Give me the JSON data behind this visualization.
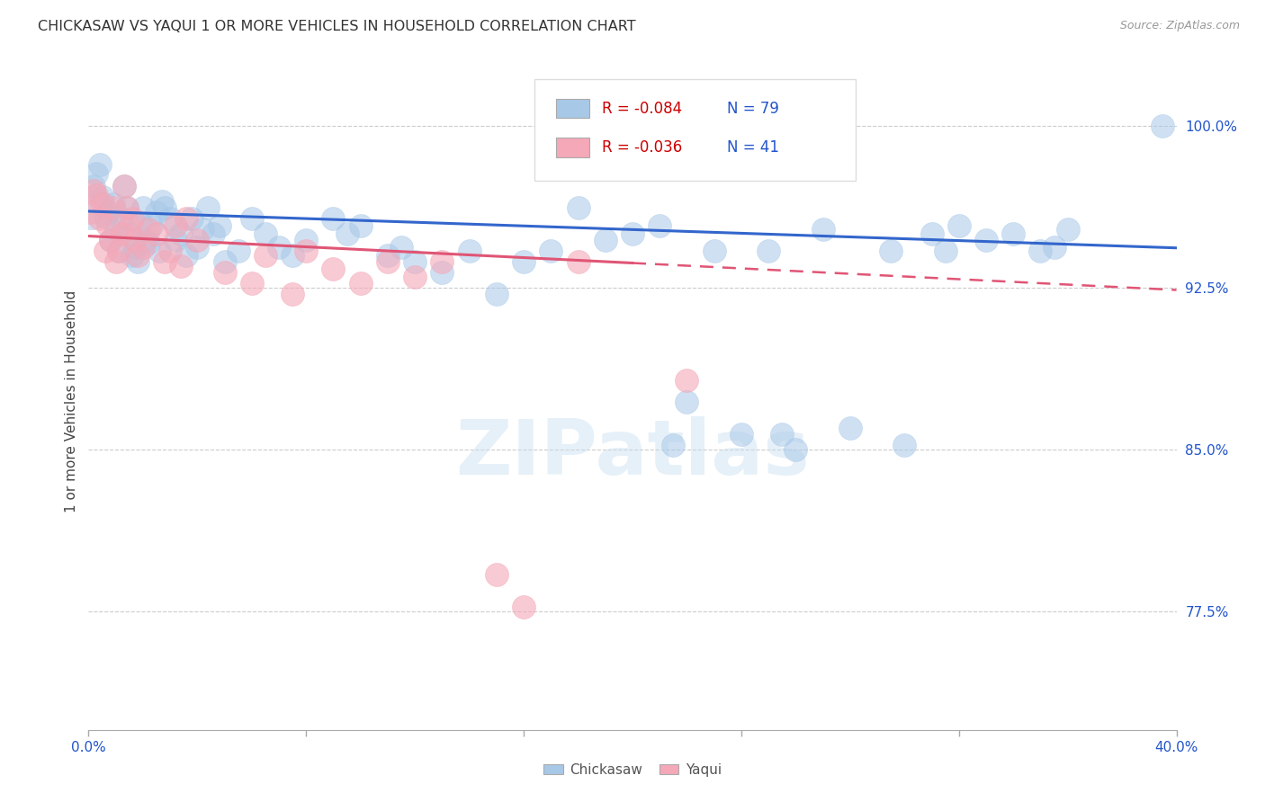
{
  "title": "CHICKASAW VS YAQUI 1 OR MORE VEHICLES IN HOUSEHOLD CORRELATION CHART",
  "source": "Source: ZipAtlas.com",
  "ylabel": "1 or more Vehicles in Household",
  "xmin": 0.0,
  "xmax": 0.4,
  "ymin": 0.72,
  "ymax": 1.025,
  "yticks": [
    0.775,
    0.85,
    0.925,
    1.0
  ],
  "ytick_labels": [
    "77.5%",
    "85.0%",
    "92.5%",
    "100.0%"
  ],
  "xticks": [
    0.0,
    0.08,
    0.16,
    0.24,
    0.32,
    0.4
  ],
  "xtick_labels": [
    "0.0%",
    "",
    "",
    "",
    "",
    "40.0%"
  ],
  "legend_blue_r": "R = -0.084",
  "legend_blue_n": "N = 79",
  "legend_pink_r": "R = -0.036",
  "legend_pink_n": "N = 41",
  "legend_labels": [
    "Chickasaw",
    "Yaqui"
  ],
  "blue_color": "#a8c8e8",
  "pink_color": "#f4a8b8",
  "blue_line_color": "#3366cc",
  "pink_line_color": "#e05575",
  "watermark": "ZIPatlas",
  "dot_size": 350,
  "big_dot_size": 1200,
  "chickasaw_x": [
    0.001,
    0.002,
    0.003,
    0.004,
    0.005,
    0.006,
    0.007,
    0.008,
    0.009,
    0.01,
    0.011,
    0.012,
    0.013,
    0.014,
    0.015,
    0.016,
    0.017,
    0.018,
    0.019,
    0.02,
    0.021,
    0.022,
    0.023,
    0.025,
    0.026,
    0.027,
    0.028,
    0.03,
    0.032,
    0.034,
    0.036,
    0.038,
    0.04,
    0.042,
    0.044,
    0.046,
    0.048,
    0.05,
    0.055,
    0.06,
    0.065,
    0.07,
    0.075,
    0.08,
    0.09,
    0.095,
    0.1,
    0.11,
    0.115,
    0.12,
    0.13,
    0.14,
    0.15,
    0.16,
    0.17,
    0.18,
    0.19,
    0.2,
    0.21,
    0.215,
    0.22,
    0.23,
    0.24,
    0.25,
    0.255,
    0.26,
    0.27,
    0.28,
    0.295,
    0.3,
    0.31,
    0.315,
    0.32,
    0.33,
    0.34,
    0.35,
    0.355,
    0.36,
    0.395
  ],
  "chickasaw_y": [
    0.962,
    0.972,
    0.978,
    0.982,
    0.967,
    0.958,
    0.96,
    0.947,
    0.964,
    0.952,
    0.942,
    0.957,
    0.972,
    0.962,
    0.95,
    0.94,
    0.944,
    0.937,
    0.955,
    0.962,
    0.947,
    0.946,
    0.954,
    0.96,
    0.942,
    0.965,
    0.962,
    0.957,
    0.947,
    0.95,
    0.94,
    0.957,
    0.944,
    0.952,
    0.962,
    0.95,
    0.954,
    0.937,
    0.942,
    0.957,
    0.95,
    0.944,
    0.94,
    0.947,
    0.957,
    0.95,
    0.954,
    0.94,
    0.944,
    0.937,
    0.932,
    0.942,
    0.922,
    0.937,
    0.942,
    0.962,
    0.947,
    0.95,
    0.954,
    0.852,
    0.872,
    0.942,
    0.857,
    0.942,
    0.857,
    0.85,
    0.952,
    0.86,
    0.942,
    0.852,
    0.95,
    0.942,
    0.954,
    0.947,
    0.95,
    0.942,
    0.944,
    0.952,
    1.0
  ],
  "chickasaw_big": [
    0
  ],
  "yaqui_x": [
    0.001,
    0.002,
    0.003,
    0.004,
    0.005,
    0.006,
    0.007,
    0.008,
    0.009,
    0.01,
    0.011,
    0.012,
    0.013,
    0.014,
    0.015,
    0.016,
    0.017,
    0.018,
    0.02,
    0.022,
    0.025,
    0.028,
    0.03,
    0.032,
    0.034,
    0.036,
    0.04,
    0.05,
    0.06,
    0.065,
    0.075,
    0.08,
    0.09,
    0.1,
    0.11,
    0.12,
    0.13,
    0.15,
    0.16,
    0.18,
    0.22
  ],
  "yaqui_y": [
    0.96,
    0.97,
    0.968,
    0.957,
    0.964,
    0.942,
    0.954,
    0.947,
    0.962,
    0.937,
    0.942,
    0.95,
    0.972,
    0.962,
    0.954,
    0.957,
    0.947,
    0.94,
    0.944,
    0.952,
    0.95,
    0.937,
    0.942,
    0.954,
    0.935,
    0.957,
    0.947,
    0.932,
    0.927,
    0.94,
    0.922,
    0.942,
    0.934,
    0.927,
    0.937,
    0.93,
    0.937,
    0.792,
    0.777,
    0.937,
    0.882
  ],
  "blue_trendline": [
    [
      0.0,
      0.4
    ],
    [
      0.9605,
      0.9435
    ]
  ],
  "pink_trendline_solid": [
    [
      0.0,
      0.2
    ],
    [
      0.949,
      0.9365
    ]
  ],
  "pink_trendline_dashed": [
    [
      0.2,
      0.4
    ],
    [
      0.9365,
      0.924
    ]
  ]
}
